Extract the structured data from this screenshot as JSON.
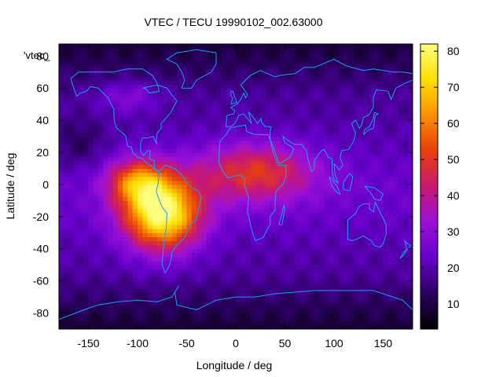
{
  "chart_data": {
    "type": "heatmap",
    "title": "VTEC / TECU 19990102_002.63000",
    "xlabel": "Longitude / deg",
    "ylabel": "Latitude / deg",
    "xlim": [
      -180,
      180
    ],
    "ylim": [
      -90,
      87.5
    ],
    "x_ticks": [
      -150,
      -100,
      -50,
      0,
      50,
      100,
      150
    ],
    "y_ticks": [
      -80,
      -60,
      -40,
      -20,
      0,
      20,
      40,
      60,
      80
    ],
    "colorbar": {
      "range": [
        3,
        82
      ],
      "ticks": [
        10,
        20,
        30,
        40,
        50,
        60,
        70,
        80
      ],
      "palette": [
        "#000000",
        "#2a0060",
        "#6400c8",
        "#9a10d8",
        "#c81870",
        "#e8400a",
        "#f89000",
        "#ffe000",
        "#ffff80"
      ]
    },
    "series_label": "'vtec_",
    "coastline_color": "#1e9bff",
    "vtec_features": {
      "background_tecu": 18,
      "polar_cap_tecu": 10,
      "anomaly_peaks": [
        {
          "lon": -75,
          "lat": -18,
          "tecu": 80
        },
        {
          "lon": -100,
          "lat": 2,
          "tecu": 72
        },
        {
          "lon": 20,
          "lat": 8,
          "tecu": 45
        }
      ]
    }
  }
}
